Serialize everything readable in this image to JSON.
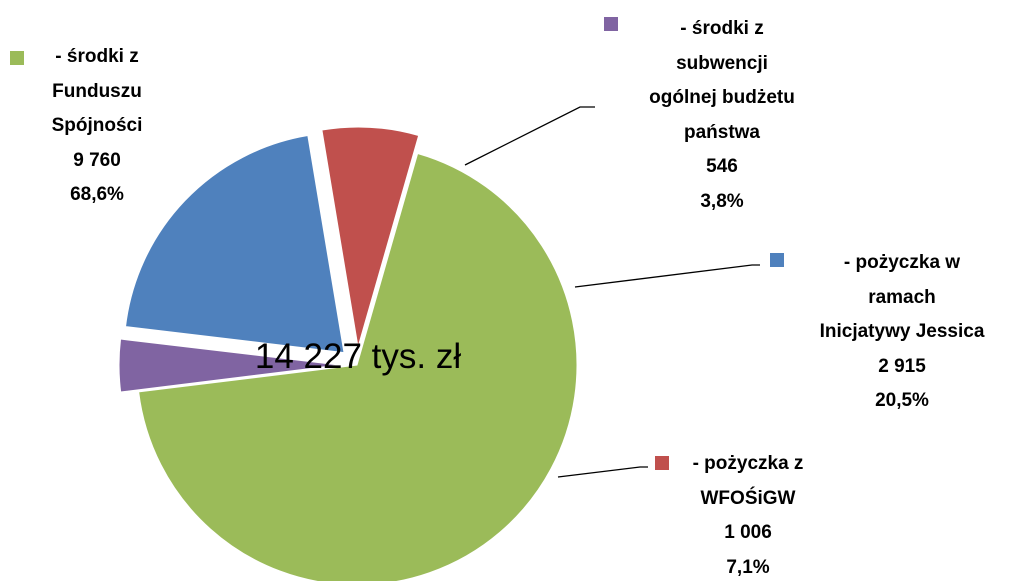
{
  "chart_data": {
    "type": "pie",
    "center_label": "14 227 tys. zł",
    "categories": [
      [
        "- środki z",
        "Funduszu",
        "Spójności"
      ],
      [
        "- środki z",
        "subwencji",
        "ogólnej budżetu",
        "państwa"
      ],
      [
        "- pożyczka w",
        "ramach",
        "Inicjatywy Jessica"
      ],
      [
        "- pożyczka z",
        "WFOŚiGW"
      ]
    ],
    "values": [
      9760,
      546,
      2915,
      1006
    ],
    "value_labels": [
      "9 760",
      "546",
      "2 915",
      "1 006"
    ],
    "percentages": [
      68.6,
      3.8,
      20.5,
      7.1
    ],
    "percentage_labels": [
      "68,6%",
      "3,8%",
      "20,5%",
      "7,1%"
    ],
    "colors": [
      "#9bbb59",
      "#8064a2",
      "#4f81bd",
      "#c0504d"
    ],
    "exploded": [
      false,
      true,
      true,
      true
    ]
  }
}
